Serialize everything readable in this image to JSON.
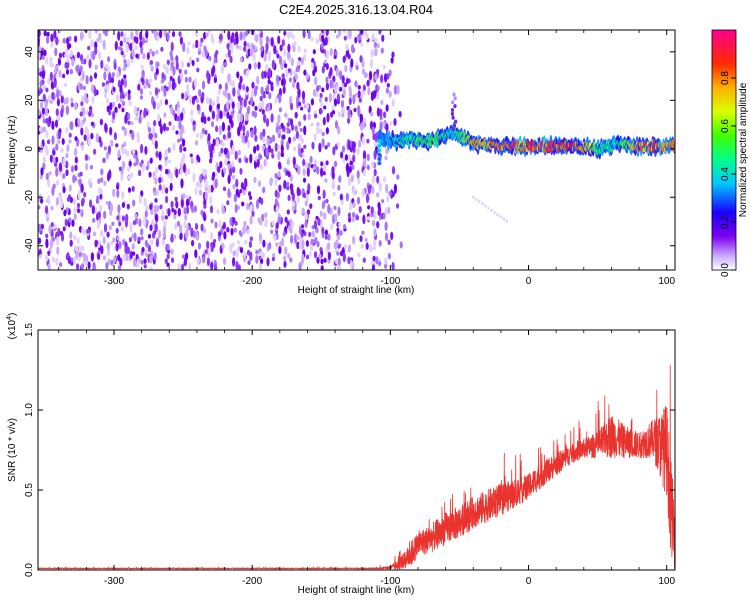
{
  "title": "C2E4.2025.316.13.04.R04",
  "chart_data": [
    {
      "type": "heatmap",
      "title": "C2E4.2025.316.13.04.R04",
      "xlabel": "Height of straight line (km)",
      "ylabel": "Frequency (Hz)",
      "xlim": [
        -355,
        106
      ],
      "ylim": [
        -50,
        49
      ],
      "x_ticks": [
        -300,
        -200,
        -100,
        0,
        100
      ],
      "x_tick_labels": [
        "-300",
        "-200",
        "-100",
        "0",
        "100"
      ],
      "y_ticks": [
        -40,
        -20,
        0,
        20,
        40
      ],
      "y_tick_labels": [
        "-40",
        "-20",
        "0",
        "20",
        "40"
      ],
      "noise_region_x": [
        -355,
        -92
      ],
      "signal_center_hz": 1,
      "signal_track": [
        {
          "x": -108,
          "hz": 4,
          "amp": 0.35
        },
        {
          "x": -95,
          "hz": 3,
          "amp": 0.45
        },
        {
          "x": -85,
          "hz": 4,
          "amp": 0.55
        },
        {
          "x": -70,
          "hz": 3,
          "amp": 0.6
        },
        {
          "x": -55,
          "hz": 7,
          "amp": 0.45
        },
        {
          "x": -40,
          "hz": 2,
          "amp": 0.8
        },
        {
          "x": -20,
          "hz": 1,
          "amp": 0.9
        },
        {
          "x": 0,
          "hz": 1,
          "amp": 0.95
        },
        {
          "x": 20,
          "hz": 1,
          "amp": 0.95
        },
        {
          "x": 35,
          "hz": 1,
          "amp": 0.9
        },
        {
          "x": 50,
          "hz": 0,
          "amp": 0.55
        },
        {
          "x": 65,
          "hz": 2,
          "amp": 0.5
        },
        {
          "x": 80,
          "hz": 1,
          "amp": 0.9
        },
        {
          "x": 100,
          "hz": 1,
          "amp": 0.9
        }
      ],
      "colorbar": {
        "label": "Normalized spectral amplitude",
        "range": [
          0,
          1
        ],
        "ticks": [
          0.0,
          0.2,
          0.4,
          0.6,
          0.8
        ],
        "tick_labels": [
          "0.0",
          "0.2",
          "0.4",
          "0.6",
          "0.8"
        ]
      }
    },
    {
      "type": "line",
      "xlabel": "Height of straight line (km)",
      "ylabel": "SNR (10 * v/v)",
      "scale_note": "(x10",
      "scale_exp": "4",
      "scale_close": ")",
      "xlim": [
        -355,
        106
      ],
      "ylim": [
        0,
        1.5
      ],
      "x_ticks": [
        -300,
        -200,
        -100,
        0,
        100
      ],
      "x_tick_labels": [
        "-300",
        "-200",
        "-100",
        "0",
        "100"
      ],
      "y_ticks": [
        0.0,
        0.5,
        1.0,
        1.5
      ],
      "y_tick_labels": [
        "0.0",
        "0.5",
        "1.0",
        "1.5"
      ],
      "series": [
        {
          "name": "SNR",
          "color": "#e8332e",
          "x": [
            -355,
            -300,
            -250,
            -200,
            -150,
            -110,
            -100,
            -95,
            -90,
            -85,
            -80,
            -70,
            -60,
            -50,
            -40,
            -30,
            -20,
            -10,
            0,
            10,
            20,
            30,
            40,
            50,
            60,
            70,
            80,
            90,
            95,
            100,
            103,
            106
          ],
          "y": [
            0.01,
            0.01,
            0.01,
            0.01,
            0.01,
            0.01,
            0.015,
            0.03,
            0.06,
            0.1,
            0.16,
            0.2,
            0.26,
            0.3,
            0.36,
            0.4,
            0.44,
            0.48,
            0.52,
            0.6,
            0.66,
            0.72,
            0.76,
            0.78,
            0.84,
            0.8,
            0.78,
            0.82,
            0.78,
            0.75,
            0.4,
            0.2
          ],
          "noise_amplitude": [
            0.003,
            0.003,
            0.003,
            0.003,
            0.003,
            0.004,
            0.01,
            0.03,
            0.05,
            0.08,
            0.08,
            0.09,
            0.1,
            0.1,
            0.1,
            0.1,
            0.1,
            0.09,
            0.08,
            0.08,
            0.07,
            0.06,
            0.06,
            0.08,
            0.14,
            0.1,
            0.08,
            0.12,
            0.2,
            0.3,
            0.3,
            0.2
          ]
        }
      ]
    }
  ],
  "colors": {
    "signal_line": "#e8332e",
    "noise_purple": "#6a00ee",
    "axis": "#000000"
  }
}
